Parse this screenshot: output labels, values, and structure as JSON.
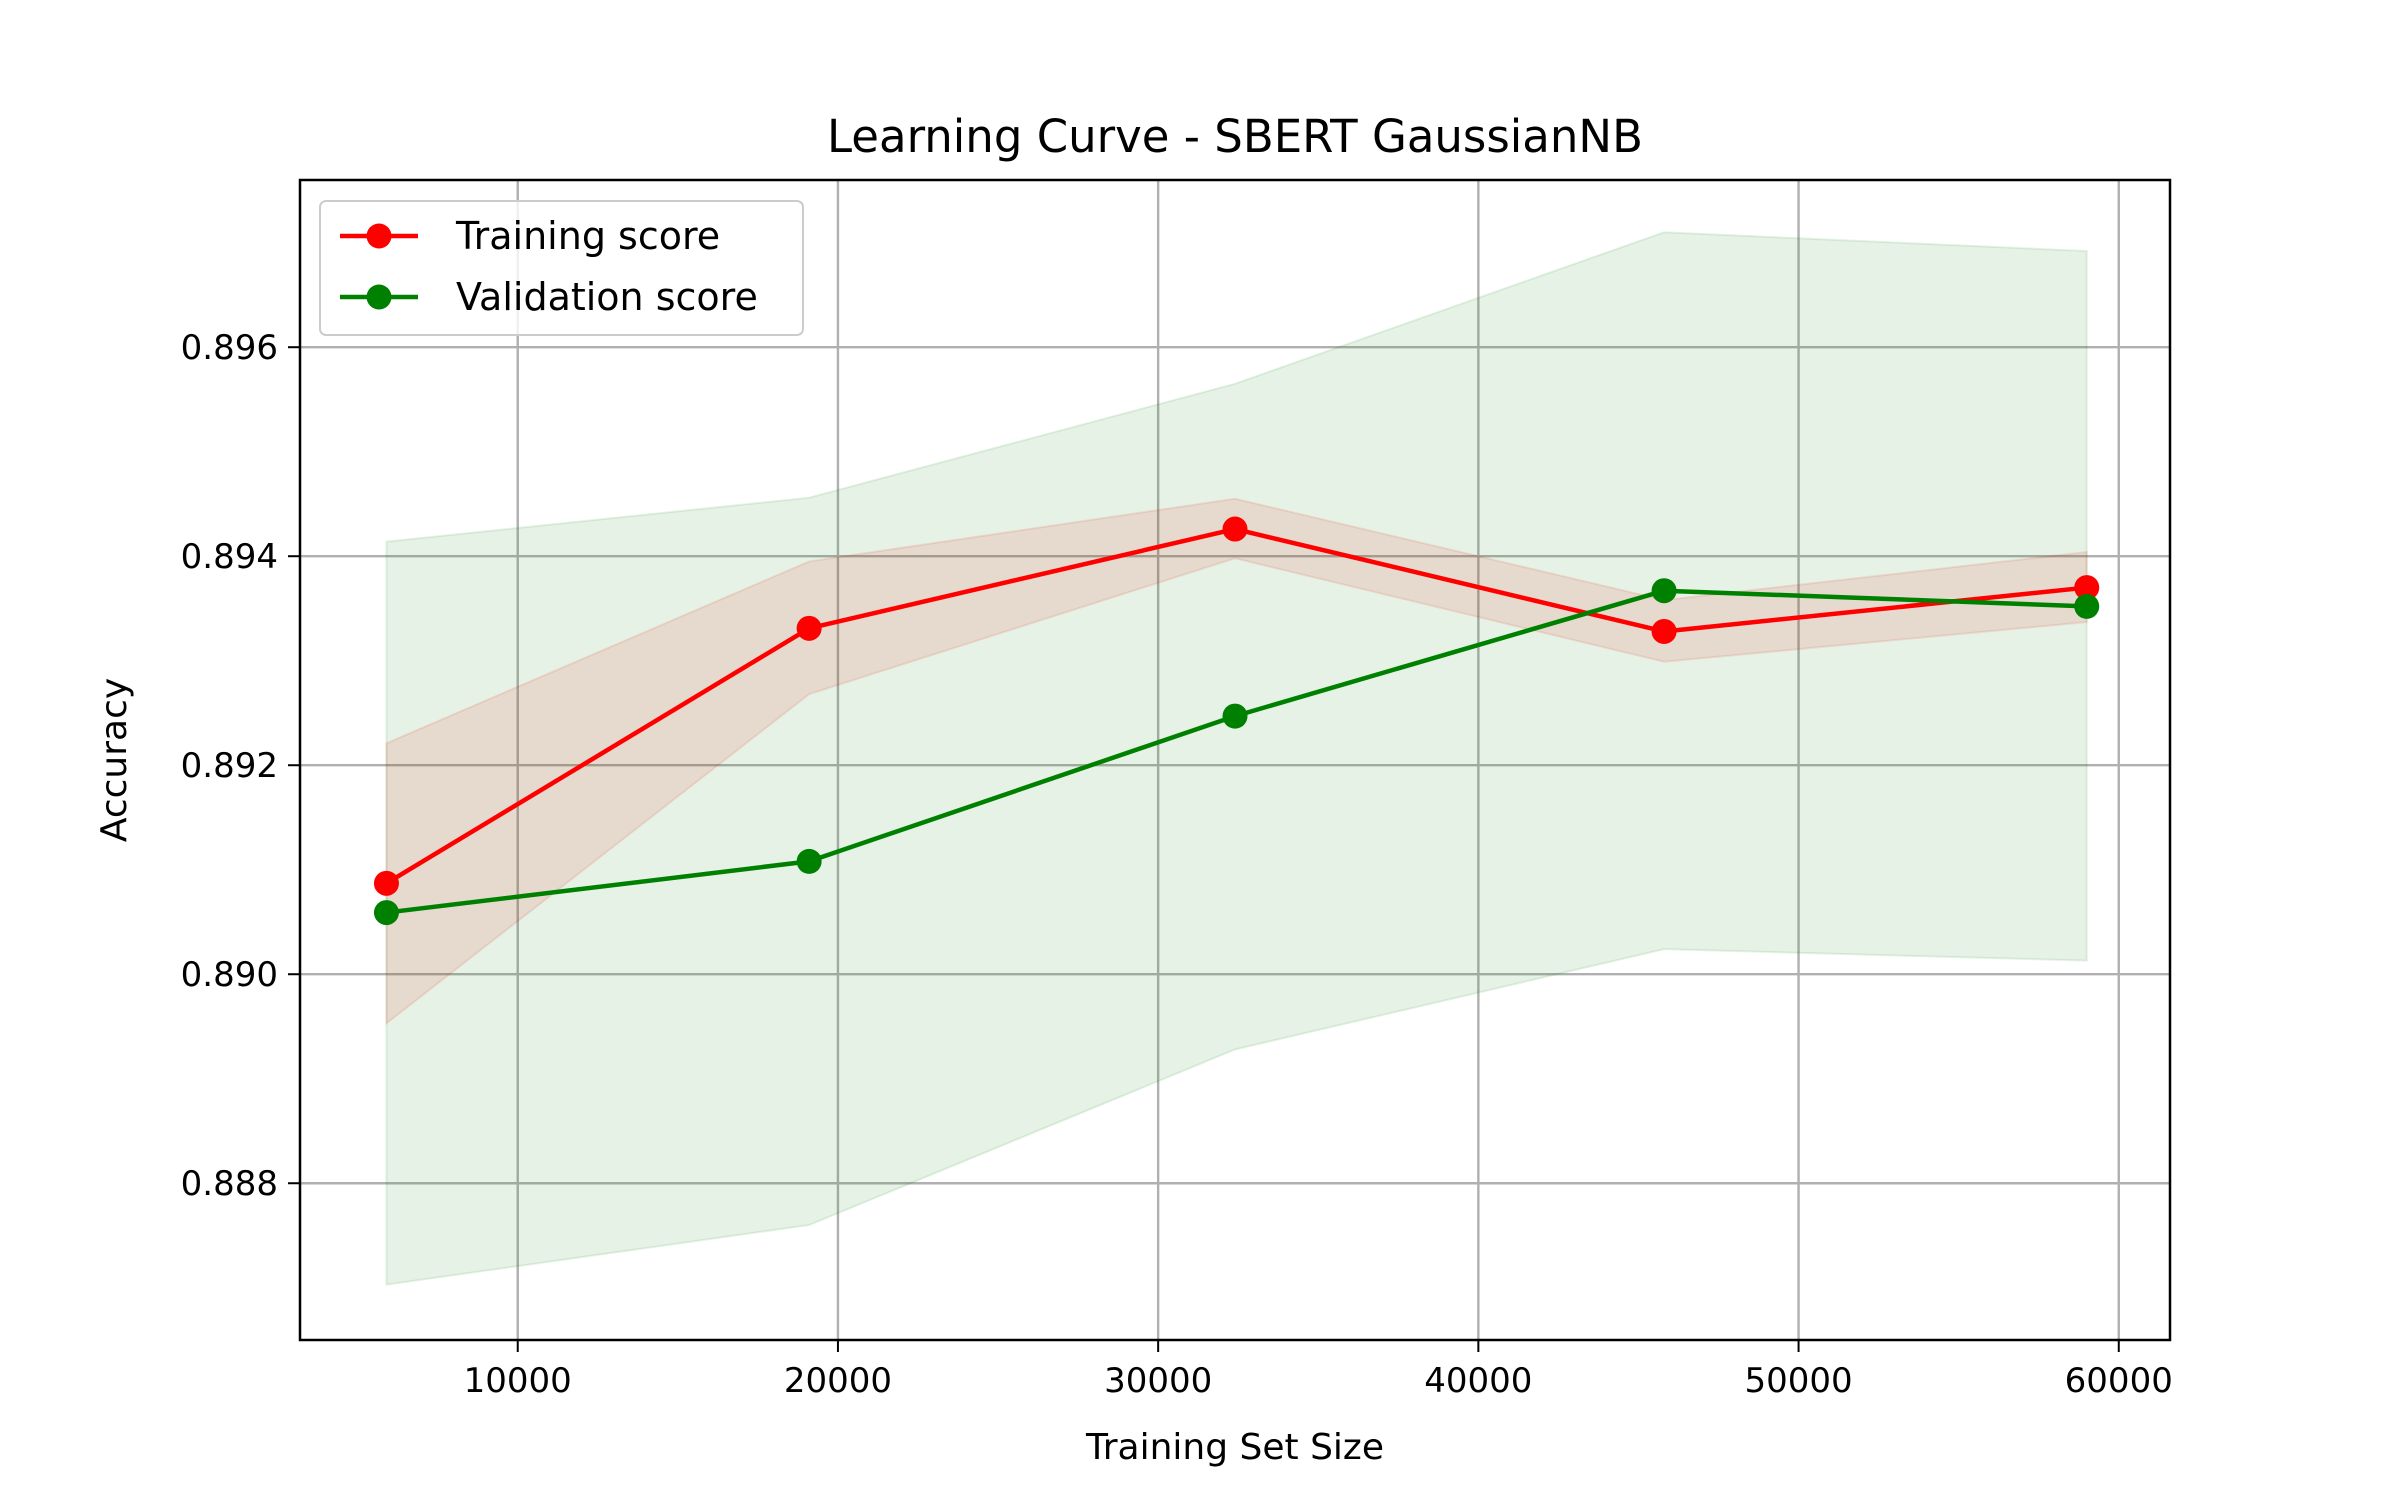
{
  "chart_data": {
    "type": "line",
    "title": "Learning Curve - SBERT GaussianNB",
    "xlabel": "Training Set Size",
    "ylabel": "Accuracy",
    "xlim": [
      3200,
      61600
    ],
    "ylim": [
      0.8865,
      0.8976
    ],
    "xticks": [
      10000,
      20000,
      30000,
      40000,
      50000,
      60000
    ],
    "xtick_labels": [
      "10000",
      "20000",
      "30000",
      "40000",
      "50000",
      "60000"
    ],
    "yticks": [
      0.888,
      0.89,
      0.892,
      0.894,
      0.896
    ],
    "ytick_labels": [
      "0.888",
      "0.890",
      "0.892",
      "0.894",
      "0.896"
    ],
    "grid": true,
    "legend_position": "upper left",
    "x": [
      5900,
      19100,
      32400,
      45800,
      59000
    ],
    "series": [
      {
        "name": "Training score",
        "color": "#ff0000",
        "marker": "circle",
        "values": [
          0.89087,
          0.89331,
          0.89426,
          0.89328,
          0.8937
        ],
        "band_lower": [
          0.88953,
          0.89268,
          0.89398,
          0.89299,
          0.89337
        ],
        "band_upper": [
          0.89221,
          0.89395,
          0.89455,
          0.89358,
          0.89404
        ]
      },
      {
        "name": "Validation score",
        "color": "#008000",
        "marker": "circle",
        "values": [
          0.89059,
          0.89108,
          0.89247,
          0.89367,
          0.89352
        ],
        "band_lower": [
          0.88703,
          0.8876,
          0.88928,
          0.89024,
          0.89013
        ],
        "band_upper": [
          0.89414,
          0.89456,
          0.89565,
          0.8971,
          0.89692
        ]
      }
    ]
  }
}
